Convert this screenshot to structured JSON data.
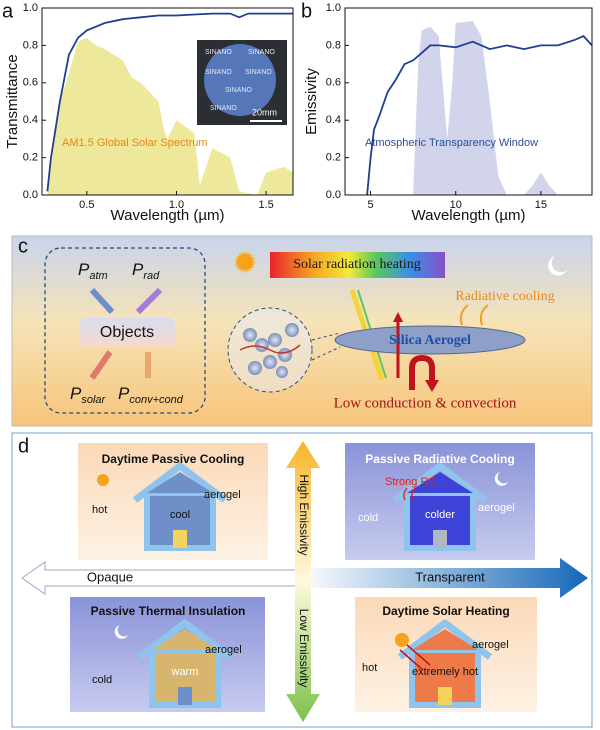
{
  "chart_data": [
    {
      "type": "line",
      "label": "a",
      "xlabel": "Wavelength (µm)",
      "ylabel": "Transmittance",
      "xlim": [
        0.25,
        1.65
      ],
      "ylim": [
        0,
        1.0
      ],
      "xticks": [
        0.5,
        {
          "value": 1,
          "label": "1.0"
        },
        1.5
      ],
      "yticks": [
        {
          "value": 0,
          "label": "0.0"
        },
        0.2,
        0.4,
        0.6,
        0.8,
        {
          "value": 1,
          "label": "1.0"
        }
      ],
      "series": [
        {
          "name": "AM1.5 Global Solar Spectrum",
          "color": "#ebe48a",
          "label_color": "#e8861a",
          "fill": true,
          "x": [
            0.28,
            0.32,
            0.35,
            0.4,
            0.45,
            0.5,
            0.55,
            0.6,
            0.7,
            0.75,
            0.8,
            0.9,
            0.93,
            0.95,
            1.0,
            1.1,
            1.13,
            1.2,
            1.3,
            1.35,
            1.45,
            1.5,
            1.6,
            1.65
          ],
          "values": [
            0,
            0.3,
            0.5,
            0.65,
            0.82,
            0.84,
            0.8,
            0.78,
            0.72,
            0.63,
            0.6,
            0.5,
            0.35,
            0.3,
            0.4,
            0.33,
            0.05,
            0.25,
            0.2,
            0.02,
            0,
            0.12,
            0.15,
            0.12
          ]
        },
        {
          "color": "#1f3f8f",
          "fill": false,
          "x": [
            0.28,
            0.3,
            0.35,
            0.4,
            0.45,
            0.5,
            0.6,
            0.7,
            0.8,
            0.9,
            1.0,
            1.1,
            1.2,
            1.3,
            1.35,
            1.4,
            1.5,
            1.6,
            1.65
          ],
          "values": [
            0.02,
            0.2,
            0.5,
            0.75,
            0.84,
            0.88,
            0.92,
            0.94,
            0.95,
            0.96,
            0.96,
            0.965,
            0.97,
            0.97,
            0.95,
            0.97,
            0.97,
            0.97,
            0.97
          ]
        }
      ],
      "inset": {
        "watermark": "SINANO",
        "scale": "20mm"
      }
    },
    {
      "type": "line",
      "label": "b",
      "xlabel": "Wavelength (µm)",
      "ylabel": "Emissivity",
      "xlim": [
        3.5,
        18
      ],
      "ylim": [
        0,
        1.0
      ],
      "xticks": [
        5,
        10,
        15
      ],
      "yticks": [
        {
          "value": 0,
          "label": "0.0"
        },
        0.2,
        0.4,
        0.6,
        0.8,
        {
          "value": 1,
          "label": "1.0"
        }
      ],
      "series": [
        {
          "name": "Atmospheric Transparency Window",
          "color": "#c9cde6",
          "label_color": "#2a4d9a",
          "fill": true,
          "x": [
            7.5,
            7.8,
            8,
            8.5,
            9,
            9.5,
            9.8,
            10,
            11,
            11.5,
            12,
            12.5,
            13,
            14,
            14.5,
            15,
            15.5,
            16,
            18
          ],
          "values": [
            0,
            0.7,
            0.88,
            0.9,
            0.85,
            0.3,
            0.6,
            0.92,
            0.93,
            0.85,
            0.5,
            0.1,
            0,
            0,
            0.05,
            0.12,
            0.05,
            0,
            0
          ]
        },
        {
          "color": "#1f3f8f",
          "fill": false,
          "x": [
            4.8,
            5,
            5.2,
            5.5,
            6,
            6.5,
            7,
            7.5,
            8,
            8.5,
            9,
            10,
            11,
            12,
            13,
            14,
            15,
            16,
            17,
            17.5,
            18
          ],
          "values": [
            0,
            0.2,
            0.35,
            0.42,
            0.55,
            0.62,
            0.7,
            0.72,
            0.76,
            0.8,
            0.8,
            0.79,
            0.82,
            0.78,
            0.8,
            0.78,
            0.8,
            0.8,
            0.83,
            0.85,
            0.8
          ]
        }
      ]
    }
  ],
  "panel_c": {
    "label": "c",
    "p_atm": {
      "symbol": "P",
      "sub": "atm"
    },
    "p_rad": {
      "symbol": "P",
      "sub": "rad"
    },
    "p_solar": {
      "symbol": "P",
      "sub": "solar"
    },
    "p_conv": {
      "symbol": "P",
      "sub": "conv+cond"
    },
    "objects": "Objects",
    "solar": "Solar radiation heating",
    "cooling": "Radiative cooling",
    "aerogel": "Silica Aerogel",
    "conduction": "Low conduction & convection"
  },
  "panel_d": {
    "label": "d",
    "quadrants": [
      {
        "title": "Daytime Passive Cooling",
        "outside": "hot",
        "material": "aerogel",
        "inside": "cool"
      },
      {
        "title": "Passive Radiative Cooling",
        "note": "Strong RC",
        "outside": "cold",
        "material": "aerogel",
        "inside": "colder"
      },
      {
        "title": "Passive Thermal Insulation",
        "outside": "cold",
        "material": "aerogel",
        "inside": "warm"
      },
      {
        "title": "Daytime Solar Heating",
        "outside": "hot",
        "material": "aerogel",
        "inside": "extremely hot"
      }
    ],
    "left": "Opaque",
    "right": "Transparent",
    "up": "High Emissivity",
    "down": "Low Emissivity"
  }
}
